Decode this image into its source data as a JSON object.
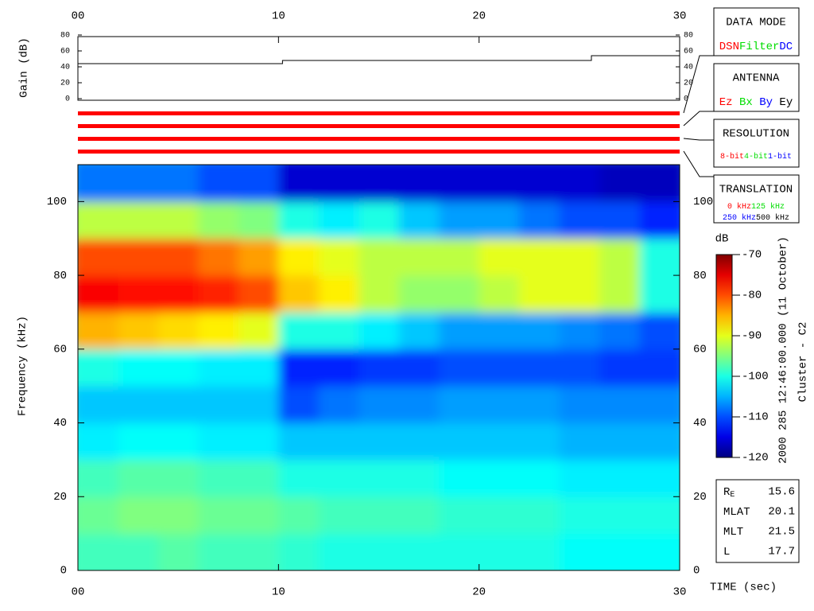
{
  "chart_data": [
    {
      "type": "line",
      "ylabel": "Gain (dB)",
      "x": [
        0,
        10.2,
        10.2,
        25.6,
        25.6,
        30
      ],
      "values": [
        44,
        44,
        48,
        48,
        54,
        54
      ],
      "color": "#000000",
      "xlim": [
        0,
        30
      ],
      "xticks": [
        {
          "value": 0,
          "label": "00"
        },
        10,
        20,
        30
      ],
      "ylim": [
        0,
        80
      ],
      "yticks": [
        0,
        20,
        40,
        60,
        80
      ]
    },
    {
      "type": "heatmap",
      "xlabel": "TIME (sec)",
      "ylabel": "Frequency (kHz)",
      "xlim": [
        0,
        30
      ],
      "xticks": [
        {
          "value": 0,
          "label": "00"
        },
        10,
        20,
        30
      ],
      "ylim": [
        0,
        110
      ],
      "yticks": [
        0,
        20,
        40,
        60,
        80,
        100
      ],
      "xbins": [
        0,
        2,
        4,
        6,
        8,
        10,
        12,
        14,
        16,
        18,
        20,
        22,
        24,
        26,
        28,
        30
      ],
      "ybins": [
        0,
        10,
        20,
        30,
        40,
        50,
        60,
        70,
        80,
        90,
        100,
        110
      ],
      "z": [
        [
          -98,
          -98,
          -97,
          -98,
          -98,
          -99,
          -100,
          -100,
          -100,
          -100,
          -100,
          -100,
          -101,
          -101,
          -101
        ],
        [
          -96,
          -95,
          -95,
          -96,
          -96,
          -97,
          -98,
          -98,
          -98,
          -99,
          -99,
          -99,
          -100,
          -100,
          -100
        ],
        [
          -98,
          -97,
          -97,
          -98,
          -98,
          -100,
          -100,
          -100,
          -100,
          -101,
          -101,
          -101,
          -102,
          -102,
          -102
        ],
        [
          -102,
          -101,
          -101,
          -102,
          -102,
          -104,
          -104,
          -104,
          -104,
          -104,
          -104,
          -104,
          -105,
          -105,
          -105
        ],
        [
          -104,
          -104,
          -104,
          -104,
          -104,
          -110,
          -108,
          -107,
          -107,
          -106,
          -106,
          -106,
          -107,
          -107,
          -107
        ],
        [
          -100,
          -101,
          -101,
          -102,
          -102,
          -112,
          -112,
          -111,
          -111,
          -110,
          -110,
          -110,
          -110,
          -111,
          -111
        ],
        [
          -85,
          -86,
          -87,
          -88,
          -90,
          -100,
          -100,
          -102,
          -104,
          -106,
          -106,
          -106,
          -107,
          -108,
          -110
        ],
        [
          -76,
          -77,
          -77,
          -78,
          -80,
          -86,
          -88,
          -92,
          -94,
          -94,
          -92,
          -90,
          -90,
          -92,
          -100
        ],
        [
          -80,
          -80,
          -80,
          -82,
          -84,
          -88,
          -90,
          -92,
          -92,
          -92,
          -90,
          -90,
          -90,
          -92,
          -100
        ],
        [
          -92,
          -92,
          -92,
          -94,
          -95,
          -100,
          -102,
          -100,
          -104,
          -106,
          -106,
          -108,
          -110,
          -110,
          -112
        ],
        [
          -108,
          -108,
          -108,
          -110,
          -110,
          -116,
          -116,
          -116,
          -116,
          -116,
          -116,
          -116,
          -116,
          -117,
          -117
        ]
      ],
      "colormap": "jet",
      "colorbar": {
        "label": "dB",
        "lim": [
          -120,
          -70
        ],
        "ticks": [
          -70,
          -80,
          -90,
          -100,
          -110,
          -120
        ]
      }
    }
  ],
  "title": "2000 285 12:46:00.000 (11 October)",
  "subtitle": "Cluster - C2",
  "panels": [
    {
      "title": "DATA MODE",
      "bar_color": "#ff0000",
      "rows": [
        [
          {
            "label": "DSN",
            "color": "#ff0000"
          },
          {
            "label": "Filter",
            "color": "#00dd00"
          },
          {
            "label": "DC",
            "color": "#0000ff"
          }
        ]
      ]
    },
    {
      "title": "ANTENNA",
      "bar_color": "#ff0000",
      "rows": [
        [
          {
            "label": "Ez",
            "color": "#ff0000"
          },
          {
            "label": "Bx",
            "color": "#00dd00"
          },
          {
            "label": "By",
            "color": "#0000ff"
          },
          {
            "label": "Ey",
            "color": "#000000"
          }
        ]
      ]
    },
    {
      "title": "RESOLUTION",
      "bar_color": "#ff0000",
      "rows": [
        [
          {
            "label": "8-bit",
            "color": "#ff0000"
          },
          {
            "label": "4-bit",
            "color": "#00dd00"
          },
          {
            "label": "1-bit",
            "color": "#0000ff"
          }
        ]
      ]
    },
    {
      "title": "TRANSLATION",
      "bar_color": "#ff0000",
      "rows": [
        [
          {
            "label": "0 kHz",
            "color": "#ff0000"
          },
          {
            "label": "125 kHz",
            "color": "#00dd00"
          }
        ],
        [
          {
            "label": "250 kHz",
            "color": "#0000ff"
          },
          {
            "label": "500 kHz",
            "color": "#000000"
          }
        ]
      ]
    }
  ],
  "ephemeris": [
    {
      "label": "R",
      "subscript": "E",
      "value": 15.6
    },
    {
      "label": "MLAT",
      "value": 20.1
    },
    {
      "label": "MLT",
      "value": 21.5
    },
    {
      "label": "L",
      "value": 17.7
    }
  ]
}
